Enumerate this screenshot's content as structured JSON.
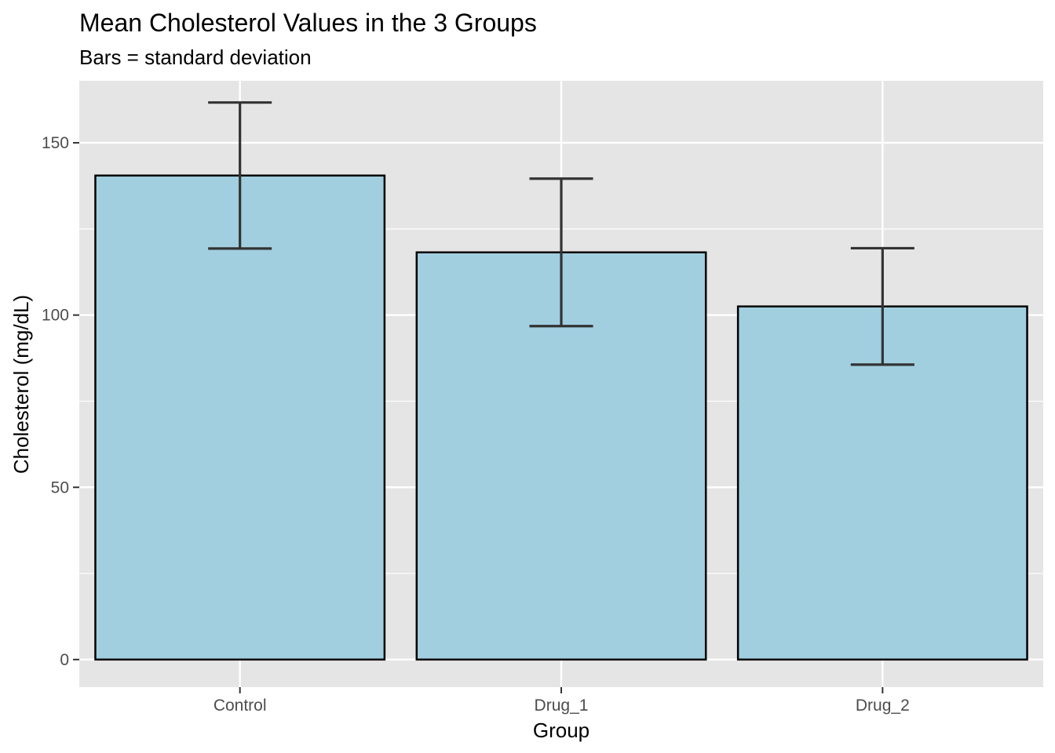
{
  "chart_data": {
    "type": "bar",
    "title": "Mean Cholesterol Values in the 3 Groups",
    "subtitle": "Bars = standard deviation",
    "xlabel": "Group",
    "ylabel": "Cholesterol (mg/dL)",
    "categories": [
      "Control",
      "Drug_1",
      "Drug_2"
    ],
    "values": [
      140.5,
      118.2,
      102.5
    ],
    "error_bars": {
      "lower": [
        119.3,
        96.8,
        85.6
      ],
      "upper": [
        161.7,
        139.6,
        119.4
      ]
    },
    "ylim": [
      -8,
      168
    ],
    "yticks": [
      0,
      50,
      100,
      150
    ],
    "ytick_labels": [
      "0",
      "50",
      "100",
      "150"
    ],
    "grid": true,
    "legend": "none",
    "colors": {
      "bar_fill": "#a1cfe0",
      "bar_outline": "#000000",
      "error_bar": "#333333",
      "panel_background": "#e5e5e5",
      "grid": "#ffffff"
    }
  }
}
